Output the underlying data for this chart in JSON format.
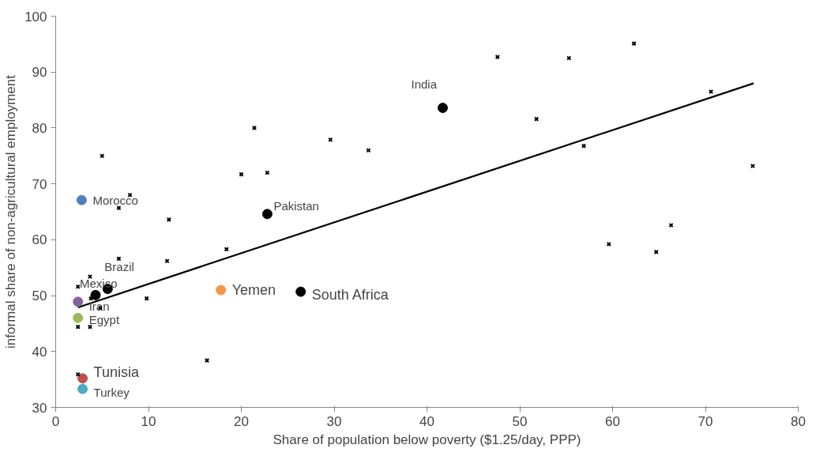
{
  "chart_data": {
    "type": "scatter",
    "xlabel": "Share of population below poverty ($1.25/day, PPP)",
    "ylabel": "informal share of non-agricultural employment",
    "xlim": [
      0,
      80
    ],
    "ylim": [
      30,
      100
    ],
    "xticks": [
      0,
      10,
      20,
      30,
      40,
      50,
      60,
      70,
      80
    ],
    "yticks": [
      30,
      40,
      50,
      60,
      70,
      80,
      90,
      100
    ],
    "grid": false,
    "legend": false,
    "series": [
      {
        "color": "#000000",
        "marker": "cross",
        "x": [
          5.0,
          21.4,
          20.0,
          22.8,
          29.6,
          33.7,
          47.6,
          55.3,
          62.3,
          70.6,
          51.8,
          56.9,
          75.1,
          66.3,
          59.6,
          64.7,
          8.0,
          6.8,
          12.2,
          18.4,
          12.0,
          6.8,
          3.7,
          2.4,
          9.8,
          3.8,
          4.8,
          2.4,
          3.7,
          16.3,
          2.4
        ],
        "values": [
          75.0,
          80.0,
          71.7,
          72.0,
          77.9,
          76.0,
          92.7,
          92.5,
          95.1,
          86.5,
          81.6,
          76.8,
          73.2,
          62.6,
          59.2,
          57.8,
          68.0,
          65.7,
          63.6,
          58.3,
          56.2,
          56.6,
          53.4,
          51.6,
          49.5,
          49.5,
          47.8,
          44.4,
          44.4,
          38.4,
          35.9
        ]
      },
      {
        "type": "line",
        "color": "#000000",
        "marker": "none",
        "x": [
          2.4,
          75.2
        ],
        "values": [
          47.9,
          88.0
        ]
      },
      {
        "name": "India",
        "color": "#000000",
        "marker": "circle",
        "x": [
          41.7
        ],
        "values": [
          83.6
        ]
      },
      {
        "name": "Pakistan",
        "color": "#000000",
        "marker": "circle",
        "x": [
          22.8
        ],
        "values": [
          64.6
        ]
      },
      {
        "name": "Morocco",
        "color": "#4f81bd",
        "marker": "circle",
        "x": [
          2.8
        ],
        "values": [
          67.1
        ]
      },
      {
        "name": "Brazil",
        "color": "#000000",
        "marker": "circle",
        "x": [
          5.6
        ],
        "values": [
          51.2
        ]
      },
      {
        "name": "Mexico",
        "color": "#000000",
        "marker": "circle",
        "x": [
          4.3
        ],
        "values": [
          50.1
        ]
      },
      {
        "name": "Iran",
        "color": "#8064a2",
        "marker": "circle",
        "x": [
          2.4
        ],
        "values": [
          48.9
        ]
      },
      {
        "name": "Egypt",
        "color": "#9bbb59",
        "marker": "circle",
        "x": [
          2.4
        ],
        "values": [
          46.0
        ]
      },
      {
        "name": "Yemen",
        "color": "#f79646",
        "marker": "circle",
        "x": [
          17.8
        ],
        "values": [
          51.0
        ]
      },
      {
        "name": "South Africa",
        "color": "#000000",
        "marker": "circle",
        "x": [
          26.4
        ],
        "values": [
          50.7
        ]
      },
      {
        "name": "Tunisia",
        "color": "#c0504d",
        "marker": "circle",
        "x": [
          2.9
        ],
        "values": [
          35.2
        ]
      },
      {
        "name": "Turkey",
        "color": "#4bacc6",
        "marker": "circle",
        "x": [
          2.9
        ],
        "values": [
          33.3
        ]
      }
    ]
  }
}
